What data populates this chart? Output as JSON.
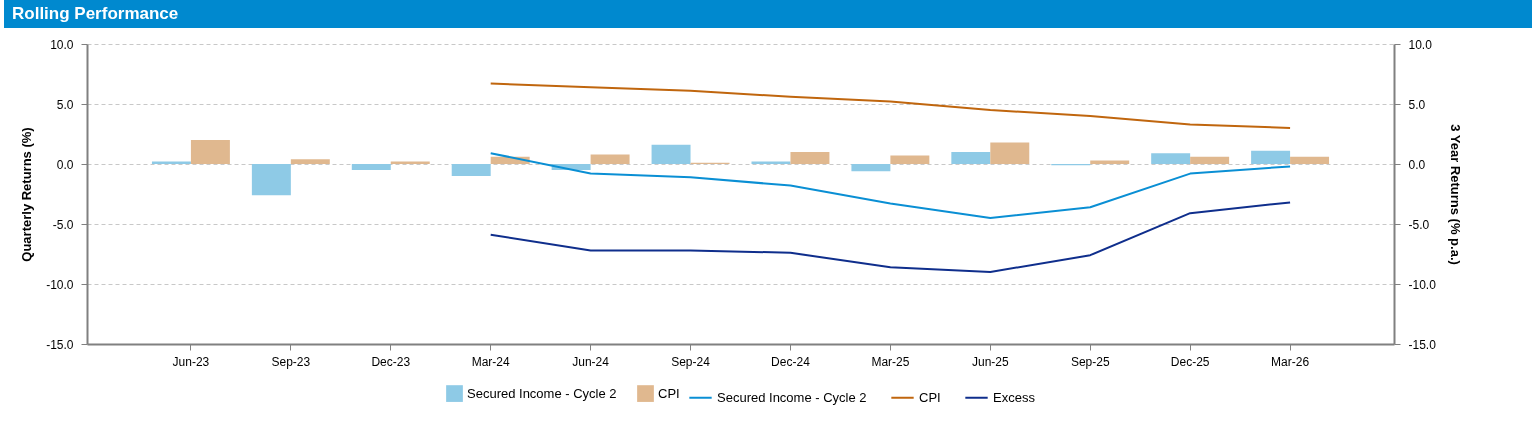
{
  "chart_data": {
    "type": "bar",
    "title": "Rolling Performance",
    "ylabel": "Quarterly Returns (%)",
    "y2label": "3 Year Returns (% p.a.)",
    "categories": [
      "Jun-23",
      "Sep-23",
      "Dec-23",
      "Mar-24",
      "Jun-24",
      "Sep-24",
      "Dec-24",
      "Mar-25",
      "Jun-25",
      "Sep-25",
      "Dec-25",
      "Mar-26"
    ],
    "series": [
      {
        "name": "Secured Income - Cycle 2",
        "color": "#8ecae6",
        "values": [
          0.2,
          -2.6,
          -0.5,
          -1.0,
          -0.5,
          1.6,
          0.2,
          -0.6,
          1.0,
          -0.1,
          0.9,
          1.1
        ]
      },
      {
        "name": "CPI",
        "color": "#e0b88f",
        "values": [
          2.0,
          0.4,
          0.2,
          0.6,
          0.8,
          0.1,
          1.0,
          0.7,
          1.8,
          0.3,
          0.6,
          0.6
        ]
      },
      {
        "name": "Secured Income - Cycle 2",
        "type": "line",
        "axis": "y2",
        "color": "#0a8fd4",
        "values": [
          null,
          null,
          null,
          0.9,
          -0.8,
          -1.1,
          -1.8,
          -3.3,
          -4.5,
          -3.6,
          -0.8,
          -0.2
        ]
      },
      {
        "name": "CPI",
        "type": "line",
        "axis": "y2",
        "color": "#c0660e",
        "values": [
          null,
          null,
          null,
          6.7,
          6.4,
          6.1,
          5.6,
          5.2,
          4.5,
          4.0,
          3.3,
          3.0
        ]
      },
      {
        "name": "Excess",
        "type": "line",
        "axis": "y2",
        "color": "#0f2e8c",
        "values": [
          null,
          null,
          null,
          -5.9,
          -7.2,
          -7.2,
          -7.4,
          -8.6,
          -9.0,
          -7.6,
          -4.1,
          -3.2
        ]
      }
    ],
    "ylim": [
      -15,
      10
    ],
    "yticks": [
      {
        "value": -15,
        "label": "-15.0"
      },
      {
        "value": -10,
        "label": "-10.0"
      },
      {
        "value": -5,
        "label": "-5.0"
      },
      {
        "value": 0,
        "label": "0.0"
      },
      {
        "value": 5,
        "label": "5.0"
      },
      {
        "value": 10,
        "label": "10.0"
      }
    ],
    "y2lim": [
      -15,
      10
    ],
    "y2ticks": [
      {
        "value": -15,
        "label": "-15.0"
      },
      {
        "value": -10,
        "label": "-10.0"
      },
      {
        "value": -5,
        "label": "-5.0"
      },
      {
        "value": 0,
        "label": "0.0"
      },
      {
        "value": 5,
        "label": "5.0"
      },
      {
        "value": 10,
        "label": "10.0"
      }
    ],
    "grid": "y",
    "legend": "bottom"
  }
}
